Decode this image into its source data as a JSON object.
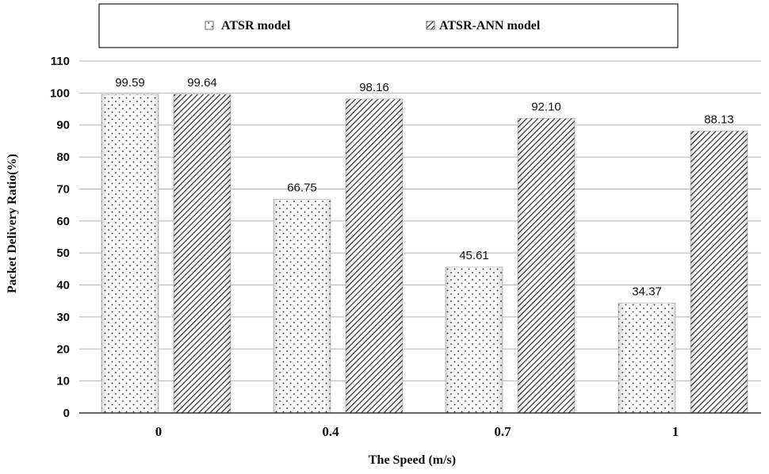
{
  "chart_data": {
    "type": "bar",
    "title": "",
    "xlabel": "The Speed (m/s)",
    "ylabel": "Packet Delivery Ratio(%)",
    "ylim": [
      0,
      110
    ],
    "yticks": [
      0,
      10,
      20,
      30,
      40,
      50,
      60,
      70,
      80,
      90,
      100,
      110
    ],
    "grid": true,
    "legend_position": "top",
    "categories": [
      "0",
      "0.4",
      "0.7",
      "1"
    ],
    "series": [
      {
        "name": "ATSR model",
        "pattern": "dots",
        "values": [
          99.59,
          66.75,
          45.61,
          34.37
        ],
        "labels": [
          "99.59",
          "66.75",
          "45.61",
          "34.37"
        ]
      },
      {
        "name": "ATSR-ANN model",
        "pattern": "diagonal-hatch",
        "values": [
          99.64,
          98.16,
          92.1,
          88.13
        ],
        "labels": [
          "99.64",
          "98.16",
          "92.10",
          "88.13"
        ]
      }
    ],
    "colors": {
      "axis": "#333333",
      "grid": "#b5b5b5",
      "bar_fill": "#ffffff",
      "pattern": "#222222",
      "text": "#111111"
    }
  }
}
